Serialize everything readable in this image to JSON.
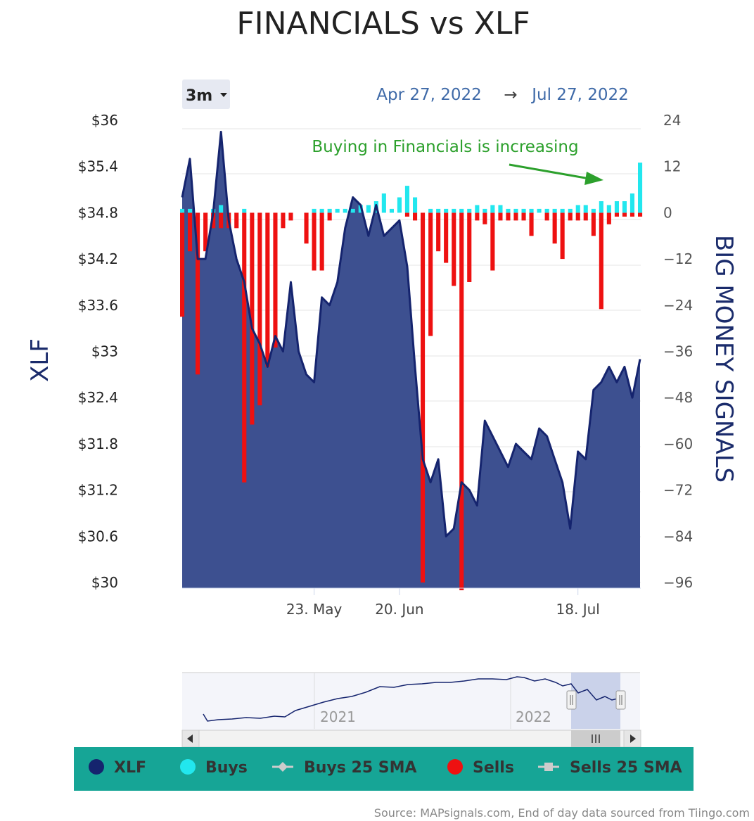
{
  "title": "FINANCIALS vs XLF",
  "range_selector": {
    "label": "3m",
    "from": "Apr 27, 2022",
    "arrow": "→",
    "to": "Jul 27, 2022"
  },
  "annotation": "Buying in Financials is increasing",
  "source": "Source: MAPsignals.com, End of day data sourced from Tiingo.com",
  "colors": {
    "xlf_fill": "#3d5090",
    "xlf_line": "#15246e",
    "buys": "#22e7ee",
    "sells": "#ee1111",
    "annotation": "#2ca02c",
    "legend_bg": "#16a596"
  },
  "navigator": {
    "labels": [
      "2021",
      "2022"
    ]
  },
  "legend": [
    {
      "label": "XLF",
      "color": "#15246e",
      "marker": "circle"
    },
    {
      "label": "Buys",
      "color": "#22e7ee",
      "marker": "circle"
    },
    {
      "label": "Buys 25 SMA",
      "color": "#cccccc",
      "marker": "line-diamond"
    },
    {
      "label": "Sells",
      "color": "#ee1111",
      "marker": "circle"
    },
    {
      "label": "Sells 25 SMA",
      "color": "#cccccc",
      "marker": "line-square"
    }
  ],
  "chart_data": {
    "type": "area",
    "x_ticks": [
      "23. May",
      "20. Jun",
      "18. Jul"
    ],
    "y_left": {
      "title": "XLF",
      "range": [
        30,
        36
      ],
      "ticks": [
        "$30",
        "$30.6",
        "$31.2",
        "$31.8",
        "$32.4",
        "$33",
        "$33.6",
        "$34.2",
        "$34.8",
        "$35.4",
        "$36"
      ]
    },
    "y_right": {
      "title": "BIG MONEY SIGNALS",
      "range": [
        -100,
        24
      ],
      "ticks": [
        "24",
        "12",
        "0",
        "−12",
        "−24",
        "−36",
        "−48",
        "−60",
        "−72",
        "−84",
        "−96"
      ]
    },
    "series": [
      {
        "name": "XLF",
        "type": "area",
        "values": [
          35.0,
          35.5,
          34.2,
          34.2,
          34.8,
          35.85,
          34.7,
          34.2,
          33.9,
          33.3,
          33.1,
          32.8,
          33.2,
          33.0,
          33.9,
          33.0,
          32.7,
          32.6,
          33.7,
          33.6,
          33.9,
          34.6,
          35.0,
          34.9,
          34.5,
          34.9,
          34.5,
          34.6,
          34.7,
          34.1,
          32.8,
          31.6,
          31.3,
          31.6,
          30.6,
          30.7,
          31.3,
          31.2,
          31.0,
          32.1,
          31.9,
          31.7,
          31.5,
          31.8,
          31.7,
          31.6,
          32.0,
          31.9,
          31.6,
          31.3,
          30.7,
          31.7,
          31.6,
          32.5,
          32.6,
          32.8,
          32.6,
          32.8,
          32.4,
          32.9
        ]
      },
      {
        "name": "Buys",
        "type": "column",
        "values": [
          1,
          1,
          0,
          0,
          1,
          2,
          0,
          0,
          1,
          0,
          0,
          0,
          0,
          0,
          0,
          0,
          0,
          1,
          1,
          1,
          1,
          1,
          1,
          2,
          2,
          3,
          5,
          1,
          4,
          7,
          4,
          0,
          1,
          1,
          1,
          1,
          1,
          1,
          2,
          1,
          2,
          2,
          1,
          1,
          1,
          1,
          1,
          1,
          1,
          1,
          1,
          2,
          2,
          1,
          3,
          2,
          3,
          3,
          5,
          13
        ]
      },
      {
        "name": "Sells",
        "type": "column",
        "values": [
          -27,
          -10,
          -42,
          -10,
          -4,
          -4,
          -4,
          -4,
          -70,
          -55,
          -50,
          -40,
          -35,
          -4,
          -2,
          0,
          -8,
          -15,
          -15,
          -2,
          0,
          0,
          0,
          0,
          0,
          0,
          0,
          0,
          0,
          -1,
          -2,
          -96,
          -32,
          -10,
          -13,
          -19,
          -98,
          -18,
          -2,
          -3,
          -15,
          -2,
          -2,
          -2,
          -2,
          -6,
          0,
          -2,
          -8,
          -12,
          -2,
          -2,
          -2,
          -6,
          -25,
          -3,
          -1,
          -1,
          -1,
          -1
        ]
      }
    ]
  }
}
